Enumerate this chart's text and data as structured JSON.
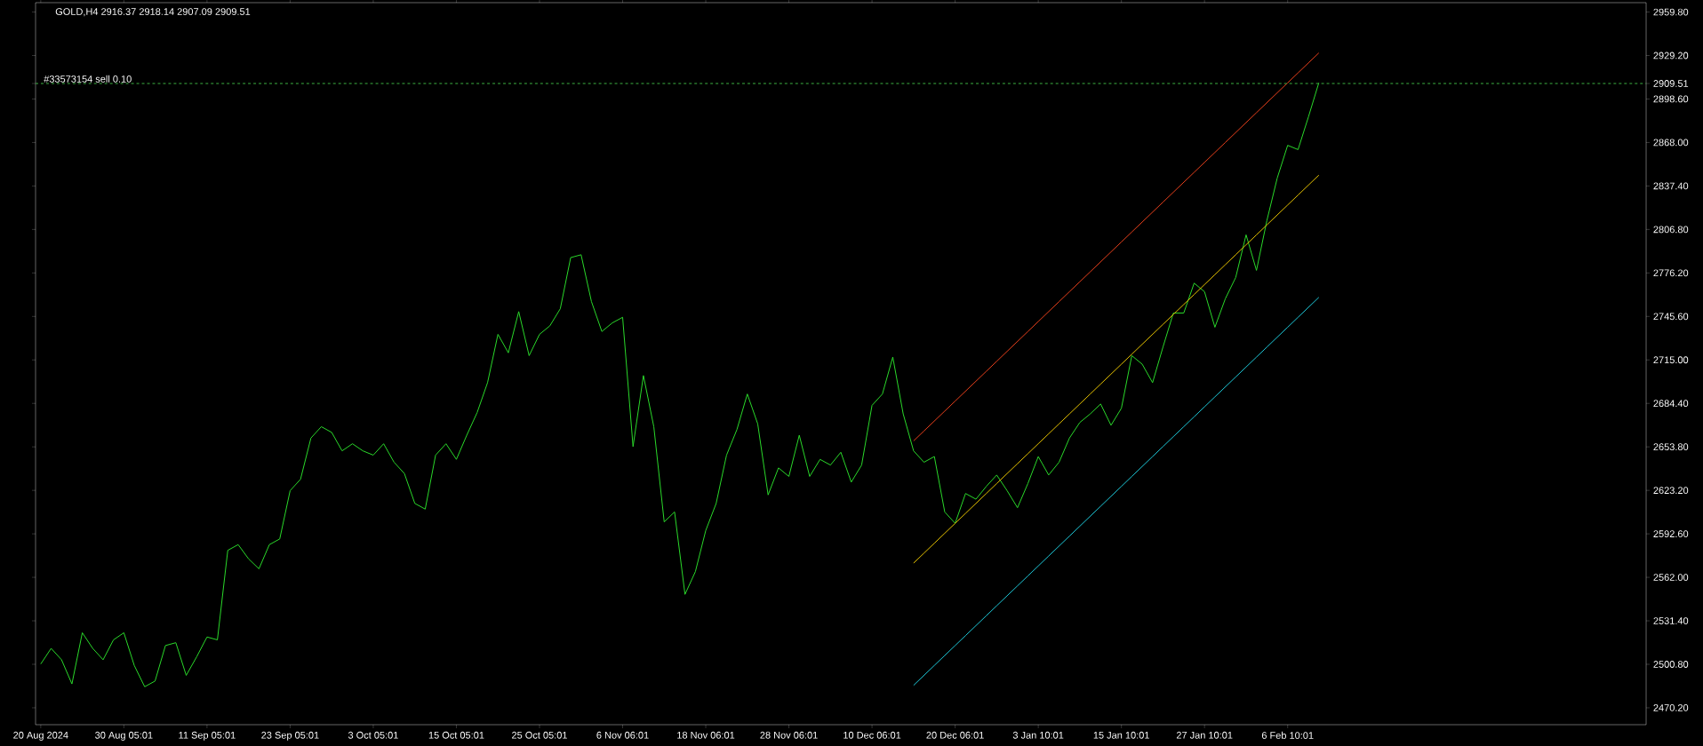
{
  "chart_data": {
    "type": "line",
    "title": "GOLD,H4  2916.37 2918.14 2907.09 2909.51",
    "categories": [
      "20 Aug 2024",
      null,
      null,
      null,
      null,
      null,
      null,
      null,
      "30 Aug 05:01",
      null,
      null,
      null,
      null,
      null,
      null,
      null,
      "11 Sep 05:01",
      null,
      null,
      null,
      null,
      null,
      null,
      null,
      "23 Sep 05:01",
      null,
      null,
      null,
      null,
      null,
      null,
      null,
      "3 Oct 05:01",
      null,
      null,
      null,
      null,
      null,
      null,
      null,
      "15 Oct 05:01",
      null,
      null,
      null,
      null,
      null,
      null,
      null,
      "25 Oct 05:01",
      null,
      null,
      null,
      null,
      null,
      null,
      null,
      "6 Nov 06:01",
      null,
      null,
      null,
      null,
      null,
      null,
      null,
      "18 Nov 06:01",
      null,
      null,
      null,
      null,
      null,
      null,
      null,
      "28 Nov 06:01",
      null,
      null,
      null,
      null,
      null,
      null,
      null,
      "10 Dec 06:01",
      null,
      null,
      null,
      null,
      null,
      null,
      null,
      "20 Dec 06:01",
      null,
      null,
      null,
      null,
      null,
      null,
      null,
      "3 Jan 10:01",
      null,
      null,
      null,
      null,
      null,
      null,
      null,
      "15 Jan 10:01",
      null,
      null,
      null,
      null,
      null,
      null,
      null,
      "27 Jan 10:01",
      null,
      null,
      null,
      null,
      null,
      null,
      null,
      "6 Feb 10:01",
      null,
      null,
      null,
      null,
      null,
      null,
      null,
      null,
      null,
      null,
      null,
      null,
      null,
      null,
      null,
      null,
      null,
      null,
      null,
      null,
      null,
      null,
      null,
      null,
      null,
      null,
      null,
      null,
      null,
      null,
      null,
      null,
      null,
      null
    ],
    "ylim": [
      2458.3,
      2966.4
    ],
    "yticks": [
      {
        "value": 2470.2,
        "label": "2470.20"
      },
      {
        "value": 2500.8,
        "label": "2500.80"
      },
      {
        "value": 2531.4,
        "label": "2531.40"
      },
      {
        "value": 2562,
        "label": "2562.00"
      },
      {
        "value": 2592.6,
        "label": "2592.60"
      },
      {
        "value": 2623.2,
        "label": "2623.20"
      },
      {
        "value": 2653.8,
        "label": "2653.80"
      },
      {
        "value": 2684.4,
        "label": "2684.40"
      },
      {
        "value": 2715,
        "label": "2715.00"
      },
      {
        "value": 2745.6,
        "label": "2745.60"
      },
      {
        "value": 2776.2,
        "label": "2776.20"
      },
      {
        "value": 2806.8,
        "label": "2806.80"
      },
      {
        "value": 2837.4,
        "label": "2837.40"
      },
      {
        "value": 2868,
        "label": "2868.00"
      },
      {
        "value": 2898.6,
        "label": "2898.60"
      },
      2909.51,
      {
        "value": 2929.2,
        "label": "2929.20"
      },
      {
        "value": 2959.8,
        "label": "2959.80"
      }
    ],
    "series": [
      {
        "color": "#2ad82a",
        "values": [
          2501,
          2512,
          2504,
          2487,
          2523,
          2512,
          2504,
          2518,
          2523,
          2500,
          2485,
          2489,
          2514,
          2516,
          2493,
          2506,
          2520,
          2518,
          2581,
          2585,
          2575,
          2568,
          2585,
          2589,
          2623,
          2631,
          2660,
          2668,
          2664,
          2651,
          2656,
          2651,
          2648,
          2656,
          2643,
          2635,
          2614,
          2610,
          2648,
          2656,
          2645,
          2662,
          2678,
          2699,
          2733,
          2720,
          2749,
          2718,
          2733,
          2739,
          2751,
          2787,
          2789,
          2756,
          2735,
          2741,
          2745,
          2654,
          2704,
          2668,
          2601,
          2608,
          2550,
          2566,
          2595,
          2614,
          2648,
          2666,
          2691,
          2670,
          2620,
          2639,
          2633,
          2662,
          2633,
          2645,
          2641,
          2650,
          2629,
          2641,
          2683,
          2691,
          2717,
          2677,
          2651,
          2643,
          2647,
          2608,
          2600,
          2621,
          2617,
          2626,
          2634,
          2623,
          2611,
          2628,
          2647,
          2634,
          2643,
          2660,
          2671,
          2677,
          2684,
          2669,
          2681,
          2718,
          2712,
          2699,
          2724,
          2748,
          2748,
          2769,
          2763,
          2738,
          2758,
          2773,
          2803,
          2778,
          2813,
          2843,
          2866,
          2863,
          2886,
          2910,
          null,
          null,
          null,
          null,
          null,
          null,
          null,
          null,
          null,
          null,
          null,
          null,
          null,
          null,
          null,
          null,
          null,
          null,
          null,
          null,
          null,
          null,
          null,
          null,
          null,
          null,
          null,
          null,
          null,
          null,
          null
        ]
      },
      {
        "color": "#e8401c",
        "values": [
          null,
          null,
          null,
          null,
          null,
          null,
          null,
          null,
          null,
          null,
          null,
          null,
          null,
          null,
          null,
          null,
          null,
          null,
          null,
          null,
          null,
          null,
          null,
          null,
          null,
          null,
          null,
          null,
          null,
          null,
          null,
          null,
          null,
          null,
          null,
          null,
          null,
          null,
          null,
          null,
          null,
          null,
          null,
          null,
          null,
          null,
          null,
          null,
          null,
          null,
          null,
          null,
          null,
          null,
          null,
          null,
          null,
          null,
          null,
          null,
          null,
          null,
          null,
          null,
          null,
          null,
          null,
          null,
          null,
          null,
          null,
          null,
          null,
          null,
          null,
          null,
          null,
          null,
          null,
          null,
          null,
          null,
          null,
          null,
          2658,
          2665,
          2672,
          2679,
          2686,
          2693,
          2700,
          2707,
          2714,
          2721,
          2728,
          2735,
          2742,
          2749,
          2756,
          2763,
          2770,
          2777,
          2784,
          2791,
          2798,
          2805,
          2812,
          2819,
          2826,
          2833,
          2840,
          2847,
          2854,
          2861,
          2868,
          2875,
          2882,
          2889,
          2896,
          2903,
          2910,
          2917,
          2924,
          2931,
          null,
          null,
          null,
          null,
          null,
          null,
          null,
          null,
          null,
          null,
          null,
          null,
          null,
          null,
          null,
          null,
          null,
          null,
          null,
          null,
          null,
          null,
          null,
          null,
          null,
          null,
          null,
          null,
          null,
          null,
          null
        ]
      },
      {
        "color": "#e6c200",
        "values": [
          null,
          null,
          null,
          null,
          null,
          null,
          null,
          null,
          null,
          null,
          null,
          null,
          null,
          null,
          null,
          null,
          null,
          null,
          null,
          null,
          null,
          null,
          null,
          null,
          null,
          null,
          null,
          null,
          null,
          null,
          null,
          null,
          null,
          null,
          null,
          null,
          null,
          null,
          null,
          null,
          null,
          null,
          null,
          null,
          null,
          null,
          null,
          null,
          null,
          null,
          null,
          null,
          null,
          null,
          null,
          null,
          null,
          null,
          null,
          null,
          null,
          null,
          null,
          null,
          null,
          null,
          null,
          null,
          null,
          null,
          null,
          null,
          null,
          null,
          null,
          null,
          null,
          null,
          null,
          null,
          null,
          null,
          null,
          null,
          2572,
          2579,
          2586,
          2593,
          2600,
          2607,
          2614,
          2621,
          2628,
          2635,
          2642,
          2649,
          2656,
          2663,
          2670,
          2677,
          2684,
          2691,
          2698,
          2705,
          2712,
          2719,
          2726,
          2733,
          2740,
          2747,
          2754,
          2761,
          2768,
          2775,
          2782,
          2789,
          2796,
          2803,
          2810,
          2817,
          2824,
          2831,
          2838,
          2845,
          null,
          null,
          null,
          null,
          null,
          null,
          null,
          null,
          null,
          null,
          null,
          null,
          null,
          null,
          null,
          null,
          null,
          null,
          null,
          null,
          null,
          null,
          null,
          null,
          null,
          null,
          null,
          null,
          null,
          null,
          null
        ]
      },
      {
        "color": "#1ec8d8",
        "values": [
          null,
          null,
          null,
          null,
          null,
          null,
          null,
          null,
          null,
          null,
          null,
          null,
          null,
          null,
          null,
          null,
          null,
          null,
          null,
          null,
          null,
          null,
          null,
          null,
          null,
          null,
          null,
          null,
          null,
          null,
          null,
          null,
          null,
          null,
          null,
          null,
          null,
          null,
          null,
          null,
          null,
          null,
          null,
          null,
          null,
          null,
          null,
          null,
          null,
          null,
          null,
          null,
          null,
          null,
          null,
          null,
          null,
          null,
          null,
          null,
          null,
          null,
          null,
          null,
          null,
          null,
          null,
          null,
          null,
          null,
          null,
          null,
          null,
          null,
          null,
          null,
          null,
          null,
          null,
          null,
          null,
          null,
          null,
          null,
          2486,
          2493,
          2500,
          2507,
          2514,
          2521,
          2528,
          2535,
          2542,
          2549,
          2556,
          2563,
          2570,
          2577,
          2584,
          2591,
          2598,
          2605,
          2612,
          2619,
          2626,
          2633,
          2640,
          2647,
          2654,
          2661,
          2668,
          2675,
          2682,
          2689,
          2696,
          2703,
          2710,
          2717,
          2724,
          2731,
          2738,
          2745,
          2752,
          2759,
          null,
          null,
          null,
          null,
          null,
          null,
          null,
          null,
          null,
          null,
          null,
          null,
          null,
          null,
          null,
          null,
          null,
          null,
          null,
          null,
          null,
          null,
          null,
          null,
          null,
          null,
          null,
          null,
          null,
          null,
          null
        ]
      }
    ],
    "ref_lines": [
      {
        "axis": "y",
        "value": 2909.51,
        "label": "#33573154 sell 0.10",
        "color": "#3cb043",
        "line_style": "dashed"
      }
    ]
  }
}
